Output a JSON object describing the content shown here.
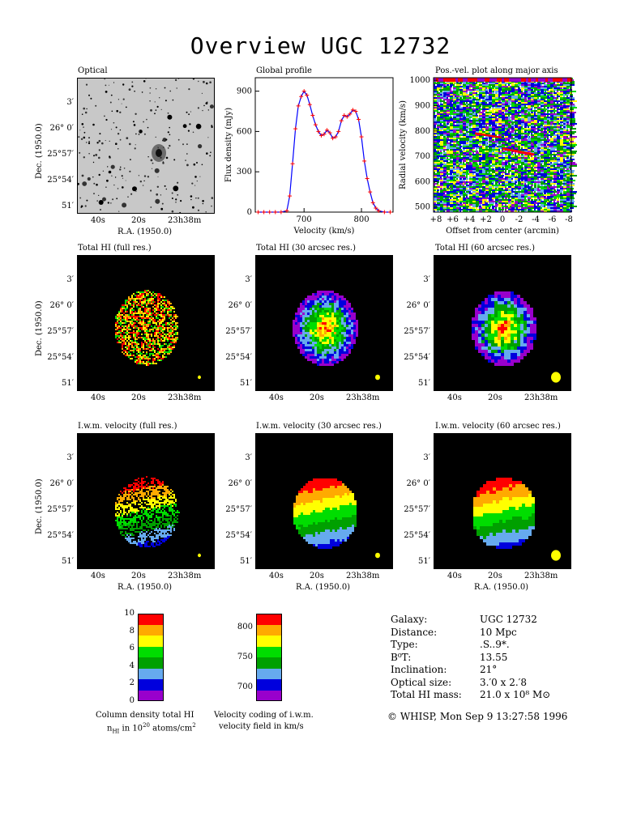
{
  "title": "Overview UGC 12732",
  "panels": {
    "optical": {
      "title": "Optical"
    },
    "global_profile": {
      "title": "Global profile"
    },
    "pv": {
      "title": "Pos.-vel. plot along major axis"
    },
    "hi_full": {
      "title": "Total HI (full res.)"
    },
    "hi_30": {
      "title": "Total HI (30 arcsec res.)"
    },
    "hi_60": {
      "title": "Total HI (60 arcsec res.)"
    },
    "vel_full": {
      "title": "I.w.m. velocity (full res.)"
    },
    "vel_30": {
      "title": "I.w.m. velocity (30 arcsec res.)"
    },
    "vel_60": {
      "title": "I.w.m. velocity (60 arcsec res.)"
    }
  },
  "axes": {
    "dec_label": "Dec. (1950.0)",
    "ra_label": "R.A. (1950.0)",
    "dec_ticks": [
      "3′",
      "26° 0′",
      "25°57′",
      "25°54′",
      "51′"
    ],
    "ra_ticks": [
      "40s",
      "20s",
      "23h38m"
    ]
  },
  "chart_data": [
    {
      "type": "line",
      "title": "Global profile",
      "xlabel": "Velocity (km/s)",
      "ylabel": "Flux density (mJy)",
      "xlim": [
        615,
        855
      ],
      "ylim": [
        0,
        1000
      ],
      "xticks": [
        700,
        800
      ],
      "yticks": [
        0,
        300,
        600,
        900
      ],
      "series": [
        {
          "x": [
            620,
            630,
            640,
            650,
            660,
            670,
            675,
            680,
            685,
            690,
            695,
            700,
            705,
            710,
            715,
            720,
            725,
            730,
            735,
            740,
            745,
            750,
            755,
            760,
            765,
            770,
            775,
            780,
            785,
            790,
            795,
            800,
            805,
            810,
            815,
            820,
            825,
            830,
            840,
            850
          ],
          "values": [
            0,
            0,
            0,
            0,
            0,
            10,
            120,
            360,
            620,
            790,
            860,
            900,
            870,
            800,
            720,
            650,
            600,
            570,
            580,
            610,
            590,
            550,
            560,
            600,
            680,
            720,
            710,
            730,
            760,
            750,
            690,
            560,
            380,
            250,
            150,
            70,
            30,
            10,
            0,
            0
          ]
        }
      ]
    },
    {
      "type": "heatmap",
      "title": "Pos.-vel. plot along major axis",
      "xlabel": "Offset from center (arcmin)",
      "ylabel": "Radial velocity (km/s)",
      "xlim": [
        8,
        -8
      ],
      "ylim": [
        480,
        1010
      ],
      "xticks": [
        "+8",
        "+6",
        "+4",
        "+2",
        "0",
        "-2",
        "-4",
        "-6",
        "-8"
      ],
      "yticks": [
        500,
        600,
        700,
        800,
        900,
        1000
      ]
    }
  ],
  "colorbars": {
    "column_density": {
      "ticks": [
        "0",
        "2",
        "4",
        "6",
        "8",
        "10"
      ],
      "caption_line1": "Column density total HI",
      "caption_n": "n",
      "caption_sub": "HI",
      "caption_mid": " in 10",
      "caption_sup": "20",
      "caption_unit": " atoms/cm",
      "caption_unit_sup": "2"
    },
    "velocity": {
      "ticks": [
        "700",
        "750",
        "800"
      ],
      "caption_line1": "Velocity coding of i.w.m.",
      "caption_line2": "velocity field in km/s"
    },
    "colors": [
      "#9900cc",
      "#0000dd",
      "#66aaee",
      "#00a000",
      "#00dd00",
      "#ffff00",
      "#ffaa00",
      "#ff0000"
    ]
  },
  "info": {
    "rows": [
      {
        "k": "Galaxy:",
        "v": "UGC 12732"
      },
      {
        "k": "Distance:",
        "v": "10 Mpc"
      },
      {
        "k": "Type:",
        "v": ".S..9*."
      },
      {
        "k": "B⁰T:",
        "v": "13.55"
      },
      {
        "k": "Inclination:",
        "v": "21°"
      },
      {
        "k": "Optical size:",
        "v": "3.′0 x 2.′8"
      },
      {
        "k": "Total HI mass:",
        "v": "21.0 x 10⁸ M⊙"
      }
    ],
    "footer": "© WHISP, Mon Sep  9 13:27:58 1996"
  }
}
